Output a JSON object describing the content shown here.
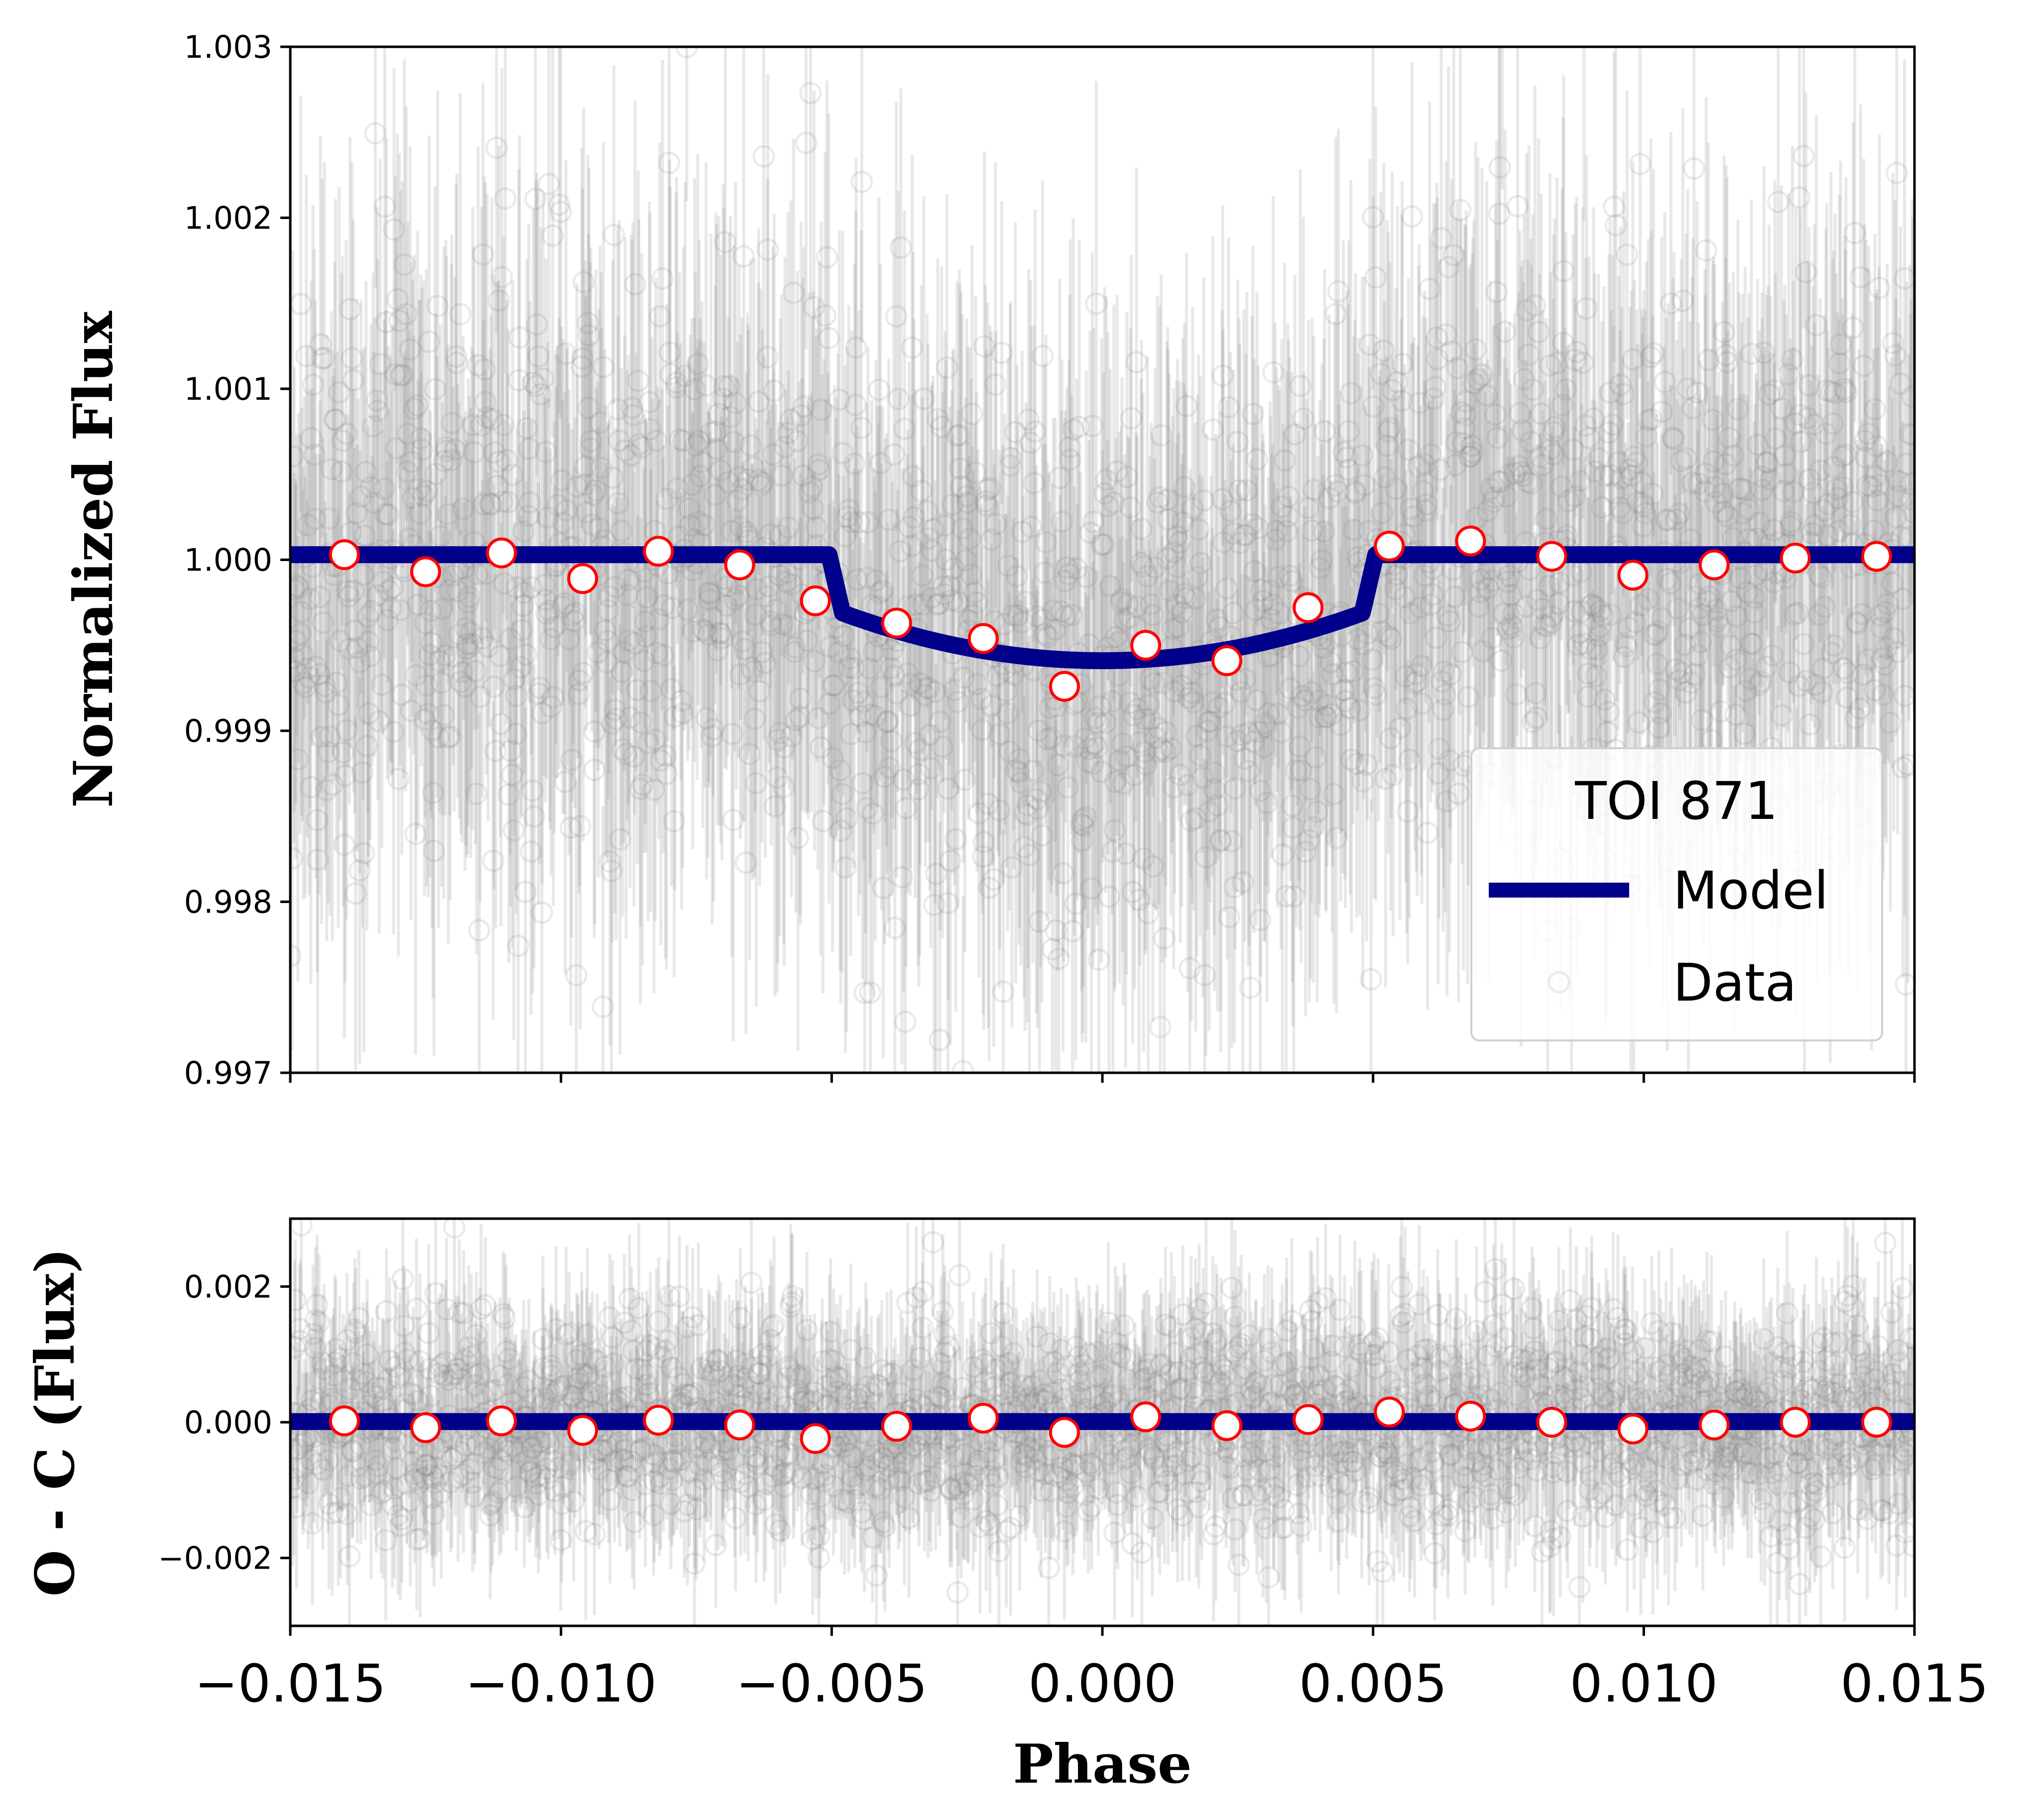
{
  "colors": {
    "model": "#00008b",
    "binned_edge": "#ff0000",
    "binned_fill": "#ffffff",
    "data": "#808080"
  },
  "chart_data": [
    {
      "panel": "light-curve",
      "type": "scatter",
      "title": "",
      "xlabel": "",
      "ylabel": "Normalized Flux",
      "xlim": [
        -0.015,
        0.015
      ],
      "ylim": [
        0.997,
        1.003
      ],
      "yticks": [
        "0.997",
        "0.998",
        "0.999",
        "1.000",
        "1.001",
        "1.002",
        "1.003"
      ],
      "legend": {
        "title": "TOI 871",
        "entries": [
          "Model",
          "Data"
        ],
        "location": "lower-right"
      },
      "model": {
        "name": "Model",
        "baseline": 1.00003,
        "depth": 0.00062,
        "t14": 0.0101,
        "ingress": 0.00025
      },
      "binned": {
        "x": [
          -0.014,
          -0.0125,
          -0.0111,
          -0.0096,
          -0.0082,
          -0.0067,
          -0.0053,
          -0.0038,
          -0.0022,
          -0.0007,
          0.0008,
          0.0023,
          0.0038,
          0.0053,
          0.0068,
          0.0083,
          0.0098,
          0.0113,
          0.0128,
          0.0143
        ],
        "y": [
          1.00003,
          0.99993,
          1.00004,
          0.99989,
          1.00005,
          0.99997,
          0.99976,
          0.99963,
          0.99954,
          0.99926,
          0.9995,
          0.99941,
          0.99972,
          1.00008,
          1.00011,
          1.00002,
          0.99991,
          0.99997,
          1.00001,
          1.00002
        ]
      },
      "raw": {
        "name": "Data",
        "count": 1800,
        "scatter_sigma": 0.00085,
        "typical_error": 0.0011
      }
    },
    {
      "panel": "residuals",
      "type": "scatter",
      "title": "",
      "xlabel": "Phase",
      "ylabel": "O - C (Flux)",
      "xlim": [
        -0.015,
        0.015
      ],
      "ylim": [
        -0.003,
        0.003
      ],
      "xticks": [
        "−0.015",
        "−0.010",
        "−0.005",
        "0.000",
        "0.005",
        "0.010",
        "0.015"
      ],
      "yticks": [
        "−0.002",
        "0.000",
        "0.002"
      ],
      "model": {
        "name": "Model",
        "level": 1e-05
      },
      "binned": {
        "x": [
          -0.014,
          -0.0125,
          -0.0111,
          -0.0096,
          -0.0082,
          -0.0067,
          -0.0053,
          -0.0038,
          -0.0022,
          -0.0007,
          0.0008,
          0.0023,
          0.0038,
          0.0053,
          0.0068,
          0.0083,
          0.0098,
          0.0113,
          0.0128,
          0.0143
        ],
        "y": [
          2e-05,
          -8e-05,
          2e-05,
          -0.00012,
          3e-05,
          -4e-05,
          -0.00024,
          -6e-05,
          6e-05,
          -0.00015,
          8e-05,
          -5e-05,
          4e-05,
          0.00015,
          9e-05,
          0.0,
          -0.0001,
          -4e-05,
          0.0,
          0.0
        ]
      },
      "raw": {
        "name": "Data",
        "count": 1800,
        "scatter_sigma": 0.00085,
        "typical_error": 0.0011
      }
    }
  ]
}
